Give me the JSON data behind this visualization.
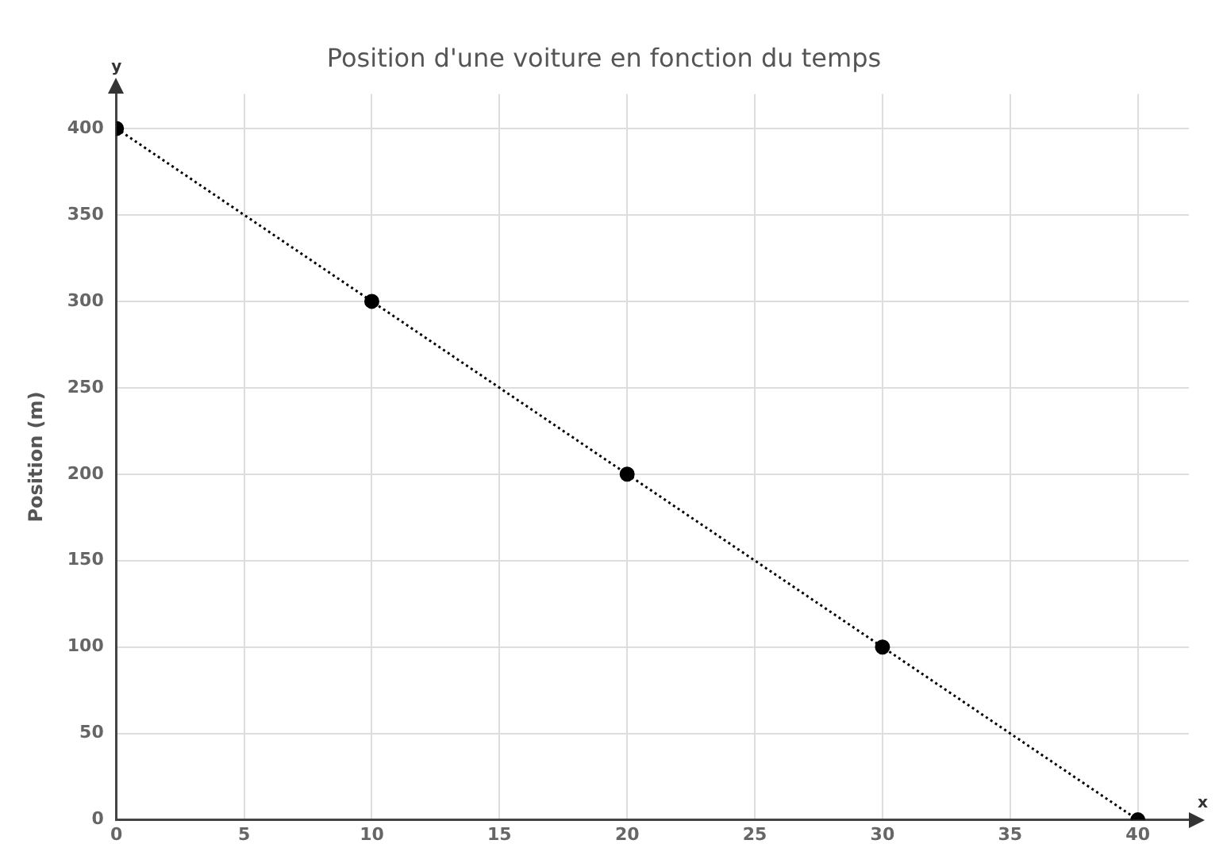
{
  "chart_data": {
    "type": "line",
    "title": "Position d'une voiture en fonction du temps",
    "ylabel": "Position (m)",
    "annotations": [
      "y",
      "x"
    ],
    "x": [
      0,
      10,
      20,
      30,
      40
    ],
    "series": [
      {
        "color": "#000000",
        "values": [
          400,
          300,
          200,
          100,
          0
        ]
      }
    ],
    "xlim": [
      0,
      42
    ],
    "xticks": [
      0,
      5,
      10,
      15,
      20,
      25,
      30,
      35,
      40
    ],
    "ylim": [
      0,
      420
    ],
    "yticks": [
      0,
      50,
      100,
      150,
      200,
      250,
      300,
      350,
      400
    ],
    "grid": true,
    "legend": false,
    "marker": "circle",
    "line_style": "dotted"
  }
}
